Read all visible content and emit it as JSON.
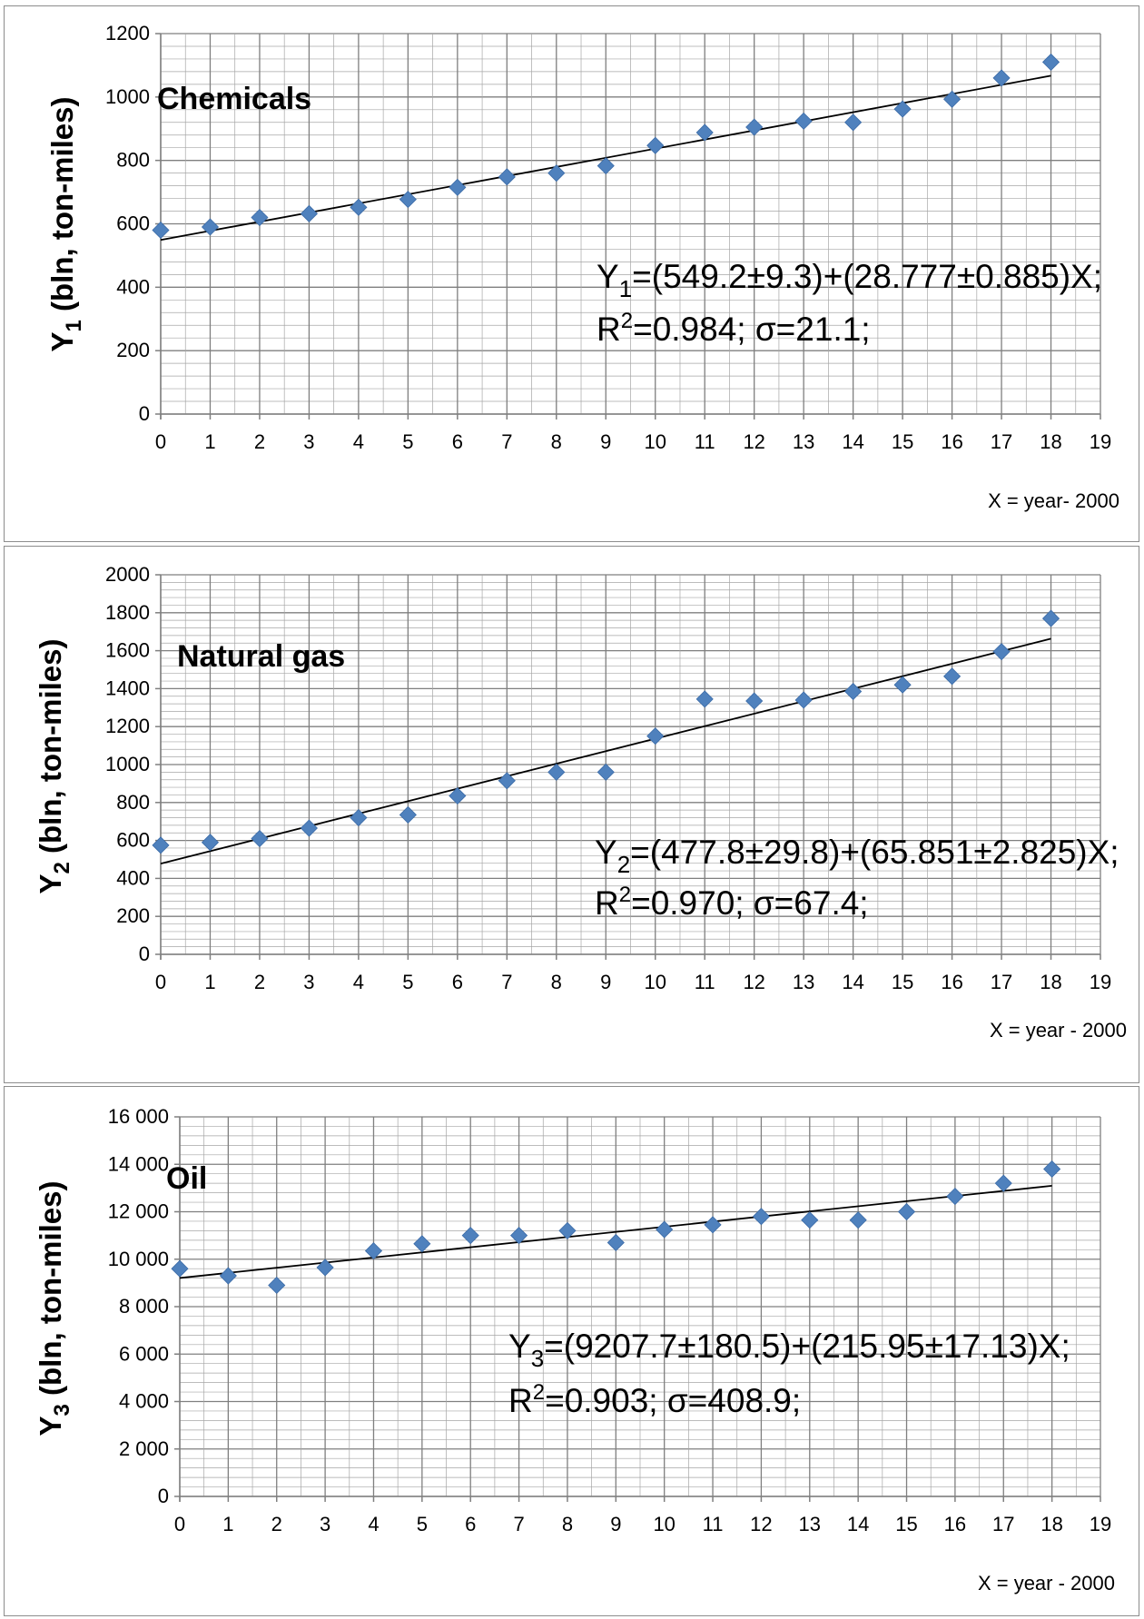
{
  "chart_data": [
    {
      "type": "scatter",
      "title": "Chemicals",
      "ylabel_main": "Y",
      "ylabel_sub": "1",
      "ylabel_rest": " (bln, ton-miles)",
      "xlabel": "X = year- 2000",
      "xlim": [
        0,
        19
      ],
      "ylim": [
        0,
        1200
      ],
      "ymajor": 200,
      "yticks": [
        "0",
        "200",
        "400",
        "600",
        "800",
        "1000",
        "1200"
      ],
      "xticks": [
        "0",
        "1",
        "2",
        "3",
        "4",
        "5",
        "6",
        "7",
        "8",
        "9",
        "10",
        "11",
        "12",
        "13",
        "14",
        "15",
        "16",
        "17",
        "18",
        "19"
      ],
      "series": [
        {
          "x": [
            0,
            1,
            2,
            3,
            4,
            5,
            6,
            7,
            8,
            9,
            10,
            11,
            12,
            13,
            14,
            15,
            16,
            17,
            18
          ],
          "y": [
            580,
            590,
            620,
            632,
            652,
            677,
            715,
            748,
            760,
            783,
            847,
            888,
            905,
            924,
            920,
            962,
            993,
            1060,
            1110
          ]
        }
      ],
      "trendline": {
        "intercept": 549.2,
        "slope": 28.777,
        "x_range": [
          0,
          18
        ]
      },
      "equation": {
        "l1_a": "Y",
        "l1_sub": "1",
        "l1_b": "=(549.2±9.3)+(28.777±0.885)X;",
        "l2_a": "R",
        "l2_sup": "2",
        "l2_b": "=0.984; σ=21.1;"
      },
      "marker_color": "#4f81bd"
    },
    {
      "type": "scatter",
      "title": "Natural gas",
      "ylabel_main": "Y",
      "ylabel_sub": "2",
      "ylabel_rest": " (bln, ton-miles)",
      "xlabel": "X = year - 2000",
      "xlim": [
        0,
        19
      ],
      "ylim": [
        0,
        2000
      ],
      "ymajor": 200,
      "yticks": [
        "0",
        "200",
        "400",
        "600",
        "800",
        "1000",
        "1200",
        "1400",
        "1600",
        "1800",
        "2000"
      ],
      "xticks": [
        "0",
        "1",
        "2",
        "3",
        "4",
        "5",
        "6",
        "7",
        "8",
        "9",
        "10",
        "11",
        "12",
        "13",
        "14",
        "15",
        "16",
        "17",
        "18",
        "19"
      ],
      "series": [
        {
          "x": [
            0,
            1,
            2,
            3,
            4,
            5,
            6,
            7,
            8,
            9,
            10,
            11,
            12,
            13,
            14,
            15,
            16,
            17,
            18
          ],
          "y": [
            575,
            590,
            610,
            665,
            720,
            735,
            835,
            915,
            960,
            960,
            1150,
            1345,
            1335,
            1340,
            1385,
            1420,
            1465,
            1595,
            1770
          ]
        }
      ],
      "trendline": {
        "intercept": 477.8,
        "slope": 65.851,
        "x_range": [
          0,
          18
        ]
      },
      "equation": {
        "l1_a": "Y",
        "l1_sub": "2",
        "l1_b": "=(477.8±29.8)+(65.851±2.825)X;",
        "l2_a": "R",
        "l2_sup": "2",
        "l2_b": "=0.970; σ=67.4;"
      },
      "marker_color": "#4f81bd"
    },
    {
      "type": "scatter",
      "title": "Oil",
      "ylabel_main": "Y",
      "ylabel_sub": "3",
      "ylabel_rest": " (bln, ton-miles)",
      "xlabel": "X = year - 2000",
      "xlim": [
        0,
        19
      ],
      "ylim": [
        0,
        16000
      ],
      "ymajor": 2000,
      "yticks": [
        "0",
        "2 000",
        "4 000",
        "6 000",
        "8 000",
        "10 000",
        "12 000",
        "14 000",
        "16 000"
      ],
      "xticks": [
        "0",
        "1",
        "2",
        "3",
        "4",
        "5",
        "6",
        "7",
        "8",
        "9",
        "10",
        "11",
        "12",
        "13",
        "14",
        "15",
        "16",
        "17",
        "18",
        "19"
      ],
      "series": [
        {
          "x": [
            0,
            1,
            2,
            3,
            4,
            5,
            6,
            7,
            8,
            9,
            10,
            11,
            12,
            13,
            14,
            15,
            16,
            17,
            18
          ],
          "y": [
            9600,
            9300,
            8900,
            9650,
            10350,
            10650,
            11000,
            11000,
            11200,
            10700,
            11250,
            11450,
            11800,
            11650,
            11650,
            12000,
            12650,
            13200,
            13800
          ]
        }
      ],
      "trendline": {
        "intercept": 9207.7,
        "slope": 215.95,
        "x_range": [
          0,
          18
        ]
      },
      "equation": {
        "l1_a": "Y",
        "l1_sub": "3",
        "l1_b": "=(9207.7±180.5)+(215.95±17.13)X;",
        "l2_a": "R",
        "l2_sup": "2",
        "l2_b": "=0.903; σ=408.9;"
      },
      "marker_color": "#4f81bd"
    }
  ]
}
